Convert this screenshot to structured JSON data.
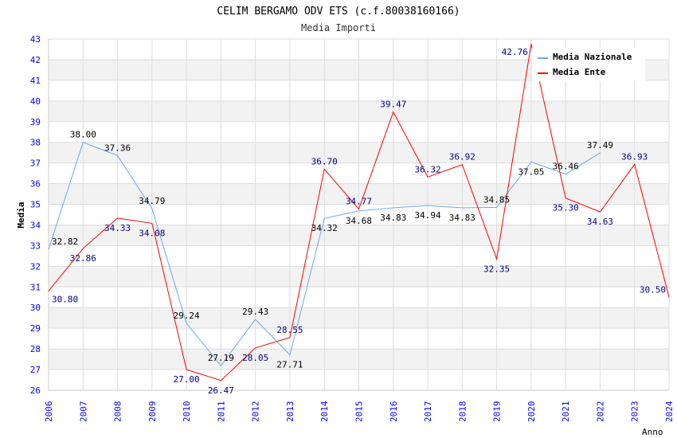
{
  "chart_data": {
    "type": "line",
    "title": "CELIM BERGAMO ODV ETS (c.f.80038160166)",
    "subtitle": "Media Importi",
    "xlabel": "Anno",
    "ylabel": "Media",
    "ylim": [
      26,
      43
    ],
    "xlim": [
      2006,
      2024
    ],
    "x": [
      2006,
      2007,
      2008,
      2009,
      2010,
      2011,
      2012,
      2013,
      2014,
      2015,
      2016,
      2017,
      2018,
      2019,
      2020,
      2021,
      2022,
      2023,
      2024
    ],
    "yticks": [
      "26",
      "27",
      "28",
      "29",
      "30",
      "31",
      "32",
      "33",
      "34",
      "35",
      "36",
      "37",
      "38",
      "39",
      "40",
      "41",
      "42",
      "43"
    ],
    "legend": "top-right",
    "series": [
      {
        "name": "Media Nazionale",
        "color": "#6aaaf0",
        "label_color": "#000000",
        "x": [
          2006,
          2007,
          2008,
          2009,
          2010,
          2011,
          2012,
          2013,
          2014,
          2015,
          2016,
          2017,
          2018,
          2019,
          2020,
          2021,
          2022
        ],
        "values": [
          32.82,
          38.0,
          37.36,
          34.79,
          29.24,
          27.19,
          29.43,
          27.71,
          34.32,
          34.68,
          34.83,
          34.94,
          34.83,
          34.85,
          37.05,
          36.46,
          37.49
        ],
        "labels": [
          "32.82",
          "38.00",
          "37.36",
          "34.79",
          "29.24",
          "27.19",
          "29.43",
          "27.71",
          "34.32",
          "34.68",
          "34.83",
          "34.94",
          "34.83",
          "34.85",
          "37.05",
          "36.46",
          "37.49"
        ]
      },
      {
        "name": "Media Ente",
        "color": "#ff0000",
        "label_color": "#00008b",
        "x": [
          2006,
          2007,
          2008,
          2009,
          2010,
          2011,
          2012,
          2013,
          2014,
          2015,
          2016,
          2017,
          2018,
          2019,
          2020,
          2021,
          2022,
          2023,
          2024
        ],
        "values": [
          30.8,
          32.86,
          34.33,
          34.08,
          27.0,
          26.47,
          28.05,
          28.55,
          36.7,
          34.77,
          39.47,
          36.32,
          36.92,
          32.35,
          42.76,
          35.3,
          34.63,
          36.93,
          30.5
        ],
        "labels": [
          "30.80",
          "32.86",
          "34.33",
          "34.08",
          "27.00",
          "26.47",
          "28.05",
          "28.55",
          "36.70",
          "34.77",
          "39.47",
          "36.32",
          "36.92",
          "32.35",
          "42.76",
          "35.30",
          "34.63",
          "36.93",
          "30.50"
        ]
      }
    ]
  }
}
